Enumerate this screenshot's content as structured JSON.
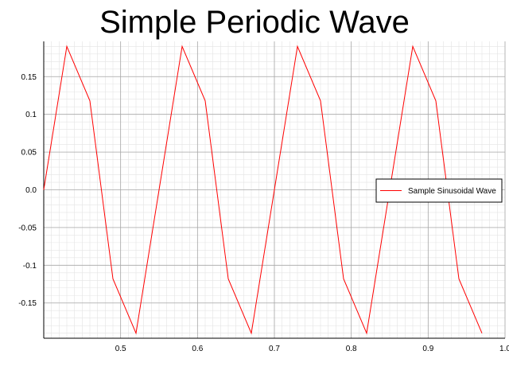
{
  "chart_data": {
    "type": "line",
    "title": "Simple Periodic Wave",
    "xlabel": "",
    "ylabel": "",
    "xlim": [
      0.4,
      1.0
    ],
    "ylim": [
      -0.1967,
      0.1967
    ],
    "x_ticks": [
      "0.5",
      "0.6",
      "0.7",
      "0.8",
      "0.9",
      "1.0"
    ],
    "y_ticks": [
      "0.15",
      "0.1",
      "0.05",
      "0.0",
      "-0.05",
      "-0.1",
      "-0.15"
    ],
    "grid": true,
    "legend_position": "right",
    "series": [
      {
        "name": "Sample Sinusoidal Wave",
        "color": "#ff0000",
        "x": [
          0.4,
          0.43,
          0.46,
          0.49,
          0.52,
          0.55,
          0.58,
          0.61,
          0.64,
          0.67,
          0.7,
          0.73,
          0.76,
          0.79,
          0.82,
          0.85,
          0.88,
          0.91,
          0.94,
          0.97
        ],
        "y": [
          0.0,
          0.19,
          0.118,
          -0.118,
          -0.19,
          0.0,
          0.19,
          0.118,
          -0.118,
          -0.19,
          0.0,
          0.19,
          0.118,
          -0.118,
          -0.19,
          0.0,
          0.19,
          0.118,
          -0.118,
          -0.19
        ]
      }
    ]
  }
}
